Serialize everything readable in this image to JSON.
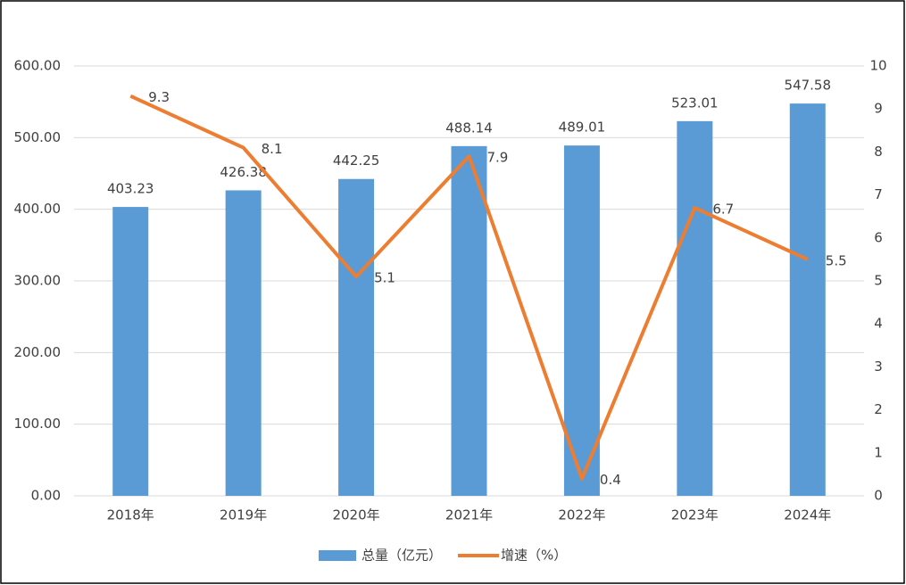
{
  "chart_data": {
    "type": "bar",
    "categories": [
      "2018年",
      "2019年",
      "2020年",
      "2021年",
      "2022年",
      "2023年",
      "2024年"
    ],
    "series": [
      {
        "name": "总量（亿元）",
        "color": "#5b9bd5",
        "type": "bar",
        "values": [
          403.23,
          426.38,
          442.25,
          488.14,
          489.01,
          523.01,
          547.58
        ]
      },
      {
        "name": "增速（%）",
        "color": "#ed7d31",
        "type": "line",
        "axis": "y2",
        "values": [
          9.3,
          8.1,
          5.1,
          7.9,
          0.4,
          6.7,
          5.5
        ]
      }
    ],
    "ylim": [
      0,
      600
    ],
    "yticks": [
      {
        "value": 0,
        "label": "0.00"
      },
      {
        "value": 100,
        "label": "100.00"
      },
      {
        "value": 200,
        "label": "200.00"
      },
      {
        "value": 300,
        "label": "300.00"
      },
      {
        "value": 400,
        "label": "400.00"
      },
      {
        "value": 500,
        "label": "500.00"
      },
      {
        "value": 600,
        "label": "600.00"
      }
    ],
    "y2lim": [
      0,
      10
    ],
    "y2ticks": [
      0,
      1,
      2,
      3,
      4,
      5,
      6,
      7,
      8,
      9,
      10
    ],
    "grid": true,
    "legend": "bottom"
  }
}
